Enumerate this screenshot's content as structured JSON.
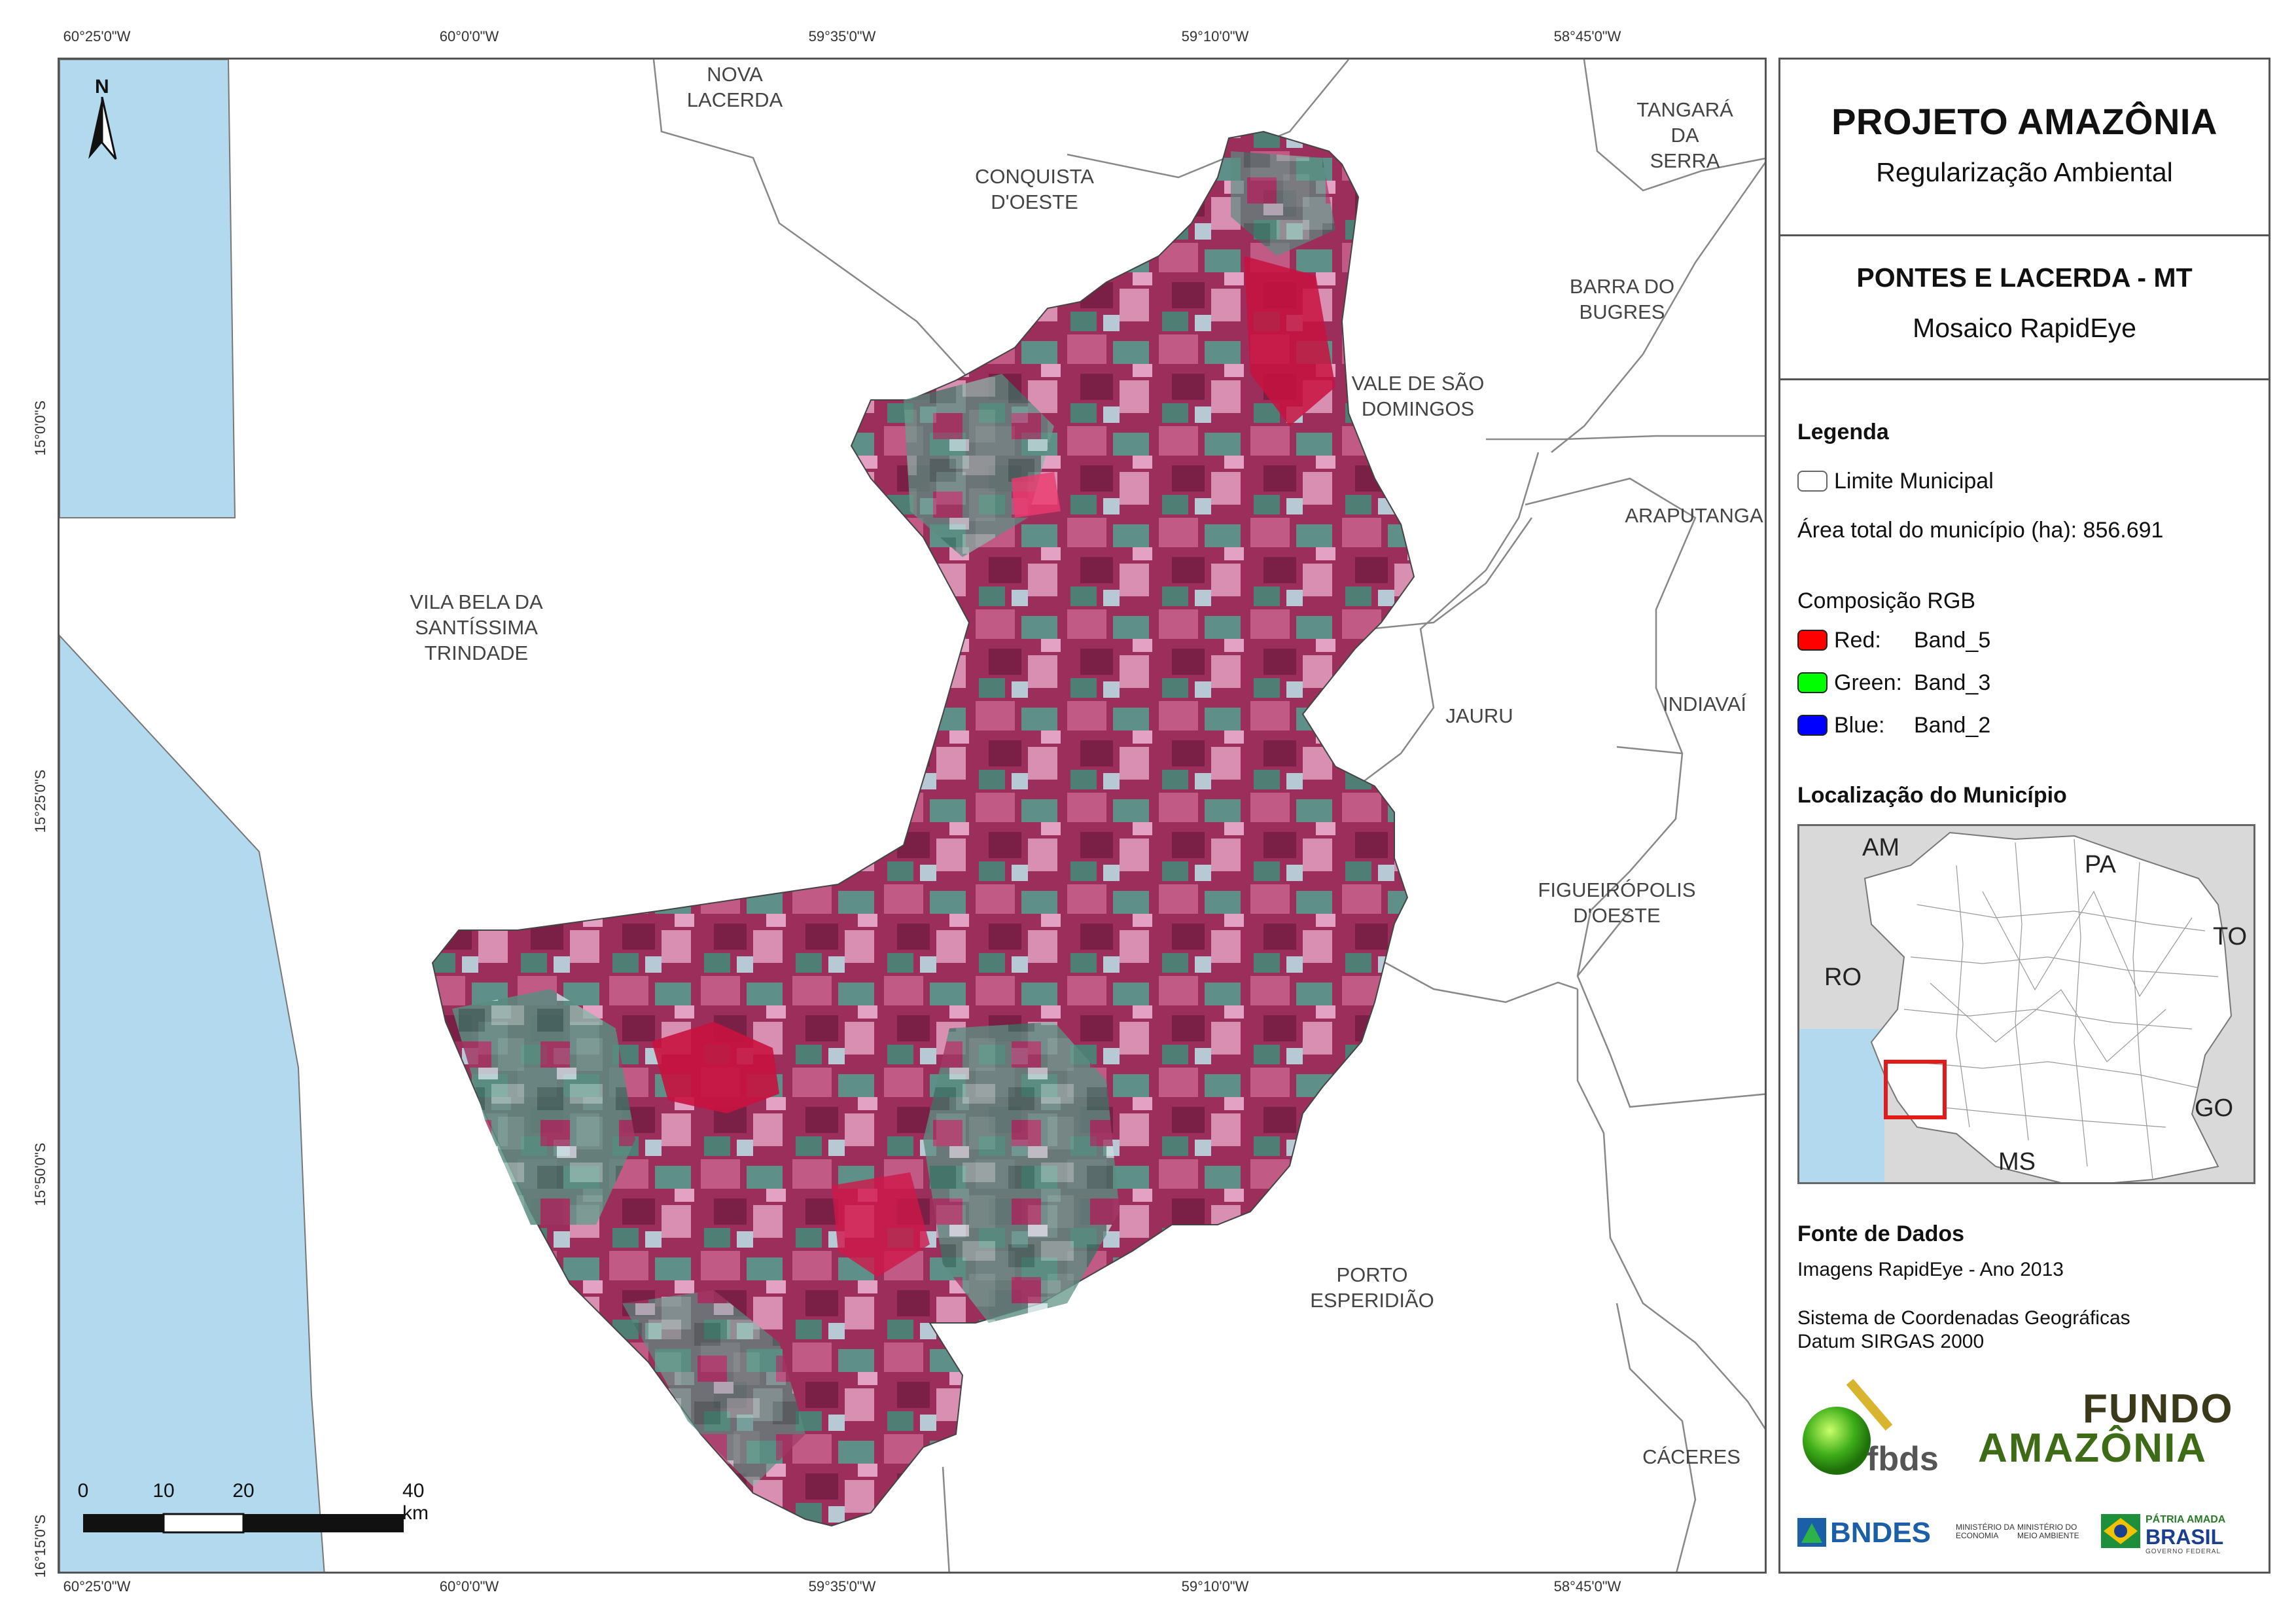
{
  "map": {
    "lon_ticks": [
      "60°25'0\"W",
      "60°0'0\"W",
      "59°35'0\"W",
      "59°10'0\"W",
      "58°45'0\"W"
    ],
    "lat_ticks": [
      "15°0'0\"S",
      "15°25'0\"S",
      "15°50'0\"S",
      "16°15'0\"S"
    ],
    "municipalities": [
      {
        "name": "NOVA\nLACERDA"
      },
      {
        "name": "CONQUISTA\nD'OESTE"
      },
      {
        "name": "TANGARÁ\nDA SERRA"
      },
      {
        "name": "BARRA DO\nBUGRES"
      },
      {
        "name": "VALE DE SÃO\nDOMINGOS"
      },
      {
        "name": "ARAPUTANGA"
      },
      {
        "name": "VILA BELA DA\nSANTÍSSIMA\nTRINDADE"
      },
      {
        "name": "JAURU"
      },
      {
        "name": "INDIAVAÍ"
      },
      {
        "name": "FIGUEIRÓPOLIS\nD'OESTE"
      },
      {
        "name": "PORTO\nESPERIDIÃO"
      },
      {
        "name": "CÁCERES"
      }
    ],
    "north_label": "N",
    "scale": {
      "labels": [
        "0",
        "10",
        "20",
        "40 km"
      ]
    },
    "colors": {
      "neighbor_country": "#b3d9ee",
      "boundary": "#888888",
      "raster_magenta": "#a3325e",
      "raster_green": "#4f8a7e"
    }
  },
  "panel": {
    "title": "PROJETO AMAZÔNIA",
    "subtitle": "Regularização Ambiental",
    "place": "PONTES E LACERDA - MT",
    "product": "Mosaico RapidEye",
    "legend_header": "Legenda",
    "limit_label": "Limite Municipal",
    "area_label": "Área total do município (ha): 856.691",
    "rgb_header": "Composição RGB",
    "bands": [
      {
        "channel": "Red:",
        "band": "Band_5",
        "color": "#ff0000"
      },
      {
        "channel": "Green:",
        "band": "Band_3",
        "color": "#00ff00"
      },
      {
        "channel": "Blue:",
        "band": "Band_2",
        "color": "#0000ff"
      }
    ],
    "location_header": "Localização do Município",
    "inset_labels": [
      "AM",
      "PA",
      "TO",
      "RO",
      "GO",
      "MS"
    ],
    "source_header": "Fonte de Dados",
    "source_lines": [
      "Imagens RapidEye - Ano 2013",
      "Sistema de Coordenadas Geográficas",
      "Datum SIRGAS 2000"
    ],
    "logos": {
      "fbds": "fbds",
      "fundo_line1": "FUNDO",
      "fundo_line2": "AMAZÔNIA",
      "bndes": "BNDES",
      "ministry1": "MINISTÉRIO DA\nECONOMIA",
      "ministry2": "MINISTÉRIO DO\nMEIO AMBIENTE",
      "patria1": "PÁTRIA AMADA",
      "patria2": "BRASIL",
      "gov": "GOVERNO FEDERAL"
    }
  }
}
